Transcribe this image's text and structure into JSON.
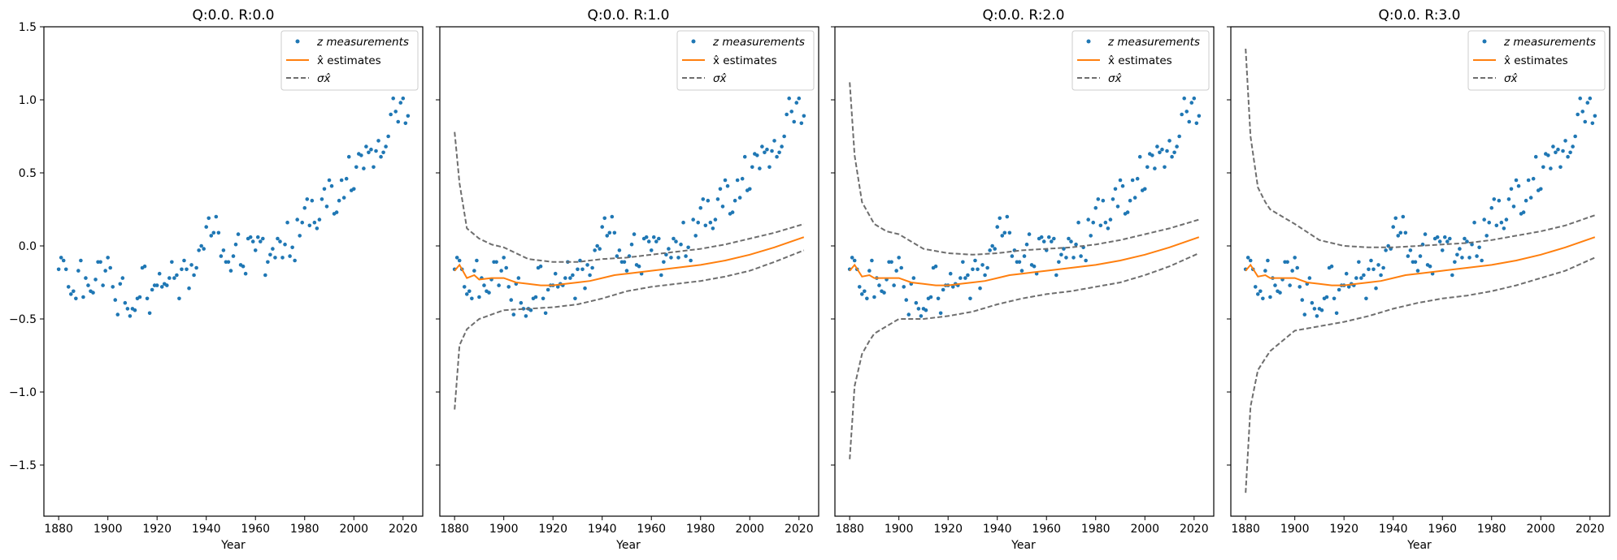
{
  "figure": {
    "xlabel": "Year"
  },
  "legend": {
    "measurements_label": "z measurements",
    "estimates_label": "x̂ estimates",
    "sigma_label": "σx̂"
  },
  "colors": {
    "measurements": "#1f77b4",
    "estimates": "#ff7f0e",
    "sigma": "#6e6e6e",
    "axes": "#000000",
    "background": "#ffffff"
  },
  "chart_data": [
    {
      "type": "line",
      "title": "Q:0.0. R:0.0",
      "xlabel": "Year",
      "ylabel": "",
      "xlim": [
        1874,
        2028
      ],
      "ylim": [
        -1.85,
        1.5
      ],
      "xticks": [
        1880,
        1900,
        1920,
        1940,
        1960,
        1980,
        2000,
        2020
      ],
      "yticks": [
        -1.5,
        -1.0,
        -0.5,
        0.0,
        0.5,
        1.0,
        1.5
      ],
      "show_y_tick_labels": true,
      "legend": "top-right",
      "grid": false,
      "series": [
        {
          "name": "z measurements",
          "kind": "scatter",
          "ref": "measurements"
        }
      ]
    },
    {
      "type": "line",
      "title": "Q:0.0. R:1.0",
      "xlabel": "Year",
      "ylabel": "",
      "xlim": [
        1874,
        2028
      ],
      "ylim": [
        -1.85,
        1.5
      ],
      "xticks": [
        1880,
        1900,
        1920,
        1940,
        1960,
        1980,
        2000,
        2020
      ],
      "yticks": [
        -1.5,
        -1.0,
        -0.5,
        0.0,
        0.5,
        1.0,
        1.5
      ],
      "show_y_tick_labels": false,
      "legend": "top-right",
      "grid": false,
      "series": [
        {
          "name": "z measurements",
          "kind": "scatter",
          "ref": "measurements"
        },
        {
          "name": "x̂ estimates",
          "kind": "line",
          "x": [
            1880,
            1882,
            1885,
            1888,
            1890,
            1895,
            1900,
            1905,
            1910,
            1915,
            1920,
            1925,
            1930,
            1935,
            1940,
            1945,
            1950,
            1960,
            1970,
            1980,
            1990,
            2000,
            2010,
            2022
          ],
          "values": [
            -0.17,
            -0.13,
            -0.22,
            -0.2,
            -0.23,
            -0.22,
            -0.22,
            -0.25,
            -0.26,
            -0.27,
            -0.27,
            -0.26,
            -0.25,
            -0.24,
            -0.22,
            -0.2,
            -0.19,
            -0.17,
            -0.15,
            -0.13,
            -0.1,
            -0.06,
            -0.01,
            0.06
          ]
        },
        {
          "name": "σx̂ upper",
          "kind": "dashed",
          "x": [
            1880,
            1882,
            1885,
            1890,
            1895,
            1900,
            1910,
            1920,
            1930,
            1940,
            1950,
            1960,
            1970,
            1980,
            1990,
            2000,
            2010,
            2022
          ],
          "values": [
            0.78,
            0.43,
            0.12,
            0.05,
            0.01,
            -0.01,
            -0.09,
            -0.11,
            -0.11,
            -0.09,
            -0.08,
            -0.06,
            -0.04,
            -0.02,
            0.01,
            0.05,
            0.09,
            0.15
          ]
        },
        {
          "name": "σx̂ lower",
          "kind": "dashed",
          "x": [
            1880,
            1882,
            1885,
            1890,
            1895,
            1900,
            1910,
            1920,
            1930,
            1940,
            1950,
            1960,
            1970,
            1980,
            1990,
            2000,
            2010,
            2022
          ],
          "values": [
            -1.12,
            -0.68,
            -0.57,
            -0.5,
            -0.47,
            -0.44,
            -0.43,
            -0.42,
            -0.4,
            -0.36,
            -0.31,
            -0.28,
            -0.26,
            -0.24,
            -0.21,
            -0.17,
            -0.11,
            -0.03
          ]
        }
      ]
    },
    {
      "type": "line",
      "title": "Q:0.0. R:2.0",
      "xlabel": "Year",
      "ylabel": "",
      "xlim": [
        1874,
        2028
      ],
      "ylim": [
        -1.85,
        1.5
      ],
      "xticks": [
        1880,
        1900,
        1920,
        1940,
        1960,
        1980,
        2000,
        2020
      ],
      "yticks": [
        -1.5,
        -1.0,
        -0.5,
        0.0,
        0.5,
        1.0,
        1.5
      ],
      "show_y_tick_labels": false,
      "legend": "top-right",
      "grid": false,
      "series": [
        {
          "name": "z measurements",
          "kind": "scatter",
          "ref": "measurements"
        },
        {
          "name": "x̂ estimates",
          "kind": "line",
          "x": [
            1880,
            1882,
            1885,
            1888,
            1890,
            1895,
            1900,
            1905,
            1910,
            1915,
            1920,
            1925,
            1930,
            1935,
            1940,
            1945,
            1950,
            1960,
            1970,
            1980,
            1990,
            2000,
            2010,
            2022
          ],
          "values": [
            -0.17,
            -0.13,
            -0.21,
            -0.2,
            -0.22,
            -0.22,
            -0.22,
            -0.25,
            -0.26,
            -0.27,
            -0.27,
            -0.26,
            -0.25,
            -0.24,
            -0.22,
            -0.2,
            -0.19,
            -0.17,
            -0.15,
            -0.13,
            -0.1,
            -0.06,
            -0.01,
            0.06
          ]
        },
        {
          "name": "σx̂ upper",
          "kind": "dashed",
          "x": [
            1880,
            1882,
            1885,
            1888,
            1890,
            1895,
            1900,
            1910,
            1920,
            1930,
            1940,
            1950,
            1960,
            1970,
            1980,
            1990,
            2000,
            2010,
            2022
          ],
          "values": [
            1.12,
            0.62,
            0.3,
            0.21,
            0.15,
            0.1,
            0.08,
            -0.02,
            -0.05,
            -0.06,
            -0.05,
            -0.03,
            -0.02,
            -0.01,
            0.01,
            0.04,
            0.08,
            0.12,
            0.18
          ]
        },
        {
          "name": "σx̂ lower",
          "kind": "dashed",
          "x": [
            1880,
            1882,
            1885,
            1888,
            1890,
            1895,
            1900,
            1910,
            1920,
            1930,
            1940,
            1950,
            1960,
            1970,
            1980,
            1990,
            2000,
            2010,
            2022
          ],
          "values": [
            -1.46,
            -0.96,
            -0.74,
            -0.65,
            -0.6,
            -0.55,
            -0.5,
            -0.5,
            -0.48,
            -0.45,
            -0.4,
            -0.36,
            -0.33,
            -0.31,
            -0.28,
            -0.25,
            -0.2,
            -0.14,
            -0.05
          ]
        }
      ]
    },
    {
      "type": "line",
      "title": "Q:0.0. R:3.0",
      "xlabel": "Year",
      "ylabel": "",
      "xlim": [
        1874,
        2028
      ],
      "ylim": [
        -1.85,
        1.5
      ],
      "xticks": [
        1880,
        1900,
        1920,
        1940,
        1960,
        1980,
        2000,
        2020
      ],
      "yticks": [
        -1.5,
        -1.0,
        -0.5,
        0.0,
        0.5,
        1.0,
        1.5
      ],
      "show_y_tick_labels": false,
      "legend": "top-right",
      "grid": false,
      "series": [
        {
          "name": "z measurements",
          "kind": "scatter",
          "ref": "measurements"
        },
        {
          "name": "x̂ estimates",
          "kind": "line",
          "x": [
            1880,
            1882,
            1885,
            1888,
            1890,
            1895,
            1900,
            1905,
            1910,
            1915,
            1920,
            1925,
            1930,
            1935,
            1940,
            1945,
            1950,
            1960,
            1970,
            1980,
            1990,
            2000,
            2010,
            2022
          ],
          "values": [
            -0.17,
            -0.13,
            -0.21,
            -0.2,
            -0.22,
            -0.22,
            -0.22,
            -0.25,
            -0.26,
            -0.27,
            -0.27,
            -0.26,
            -0.25,
            -0.24,
            -0.22,
            -0.2,
            -0.19,
            -0.17,
            -0.15,
            -0.13,
            -0.1,
            -0.06,
            -0.01,
            0.06
          ]
        },
        {
          "name": "σx̂ upper",
          "kind": "dashed",
          "x": [
            1880,
            1882,
            1885,
            1888,
            1890,
            1895,
            1900,
            1910,
            1920,
            1930,
            1940,
            1950,
            1960,
            1970,
            1980,
            1990,
            2000,
            2010,
            2022
          ],
          "values": [
            1.35,
            0.75,
            0.4,
            0.3,
            0.25,
            0.2,
            0.15,
            0.04,
            0.0,
            -0.01,
            -0.01,
            0.0,
            0.01,
            0.02,
            0.04,
            0.07,
            0.1,
            0.14,
            0.21
          ]
        },
        {
          "name": "σx̂ lower",
          "kind": "dashed",
          "x": [
            1880,
            1882,
            1885,
            1888,
            1890,
            1895,
            1900,
            1910,
            1920,
            1930,
            1940,
            1950,
            1960,
            1970,
            1980,
            1990,
            2000,
            2010,
            2022
          ],
          "values": [
            -1.69,
            -1.1,
            -0.85,
            -0.77,
            -0.72,
            -0.65,
            -0.58,
            -0.55,
            -0.52,
            -0.48,
            -0.43,
            -0.39,
            -0.36,
            -0.34,
            -0.31,
            -0.27,
            -0.22,
            -0.17,
            -0.08
          ]
        }
      ]
    }
  ],
  "measurements": {
    "x": [
      1880,
      1881,
      1882,
      1883,
      1884,
      1885,
      1886,
      1887,
      1888,
      1889,
      1890,
      1891,
      1892,
      1893,
      1894,
      1895,
      1896,
      1897,
      1898,
      1899,
      1900,
      1901,
      1902,
      1903,
      1904,
      1905,
      1906,
      1907,
      1908,
      1909,
      1910,
      1911,
      1912,
      1913,
      1914,
      1915,
      1916,
      1917,
      1918,
      1919,
      1920,
      1921,
      1922,
      1923,
      1924,
      1925,
      1926,
      1927,
      1928,
      1929,
      1930,
      1931,
      1932,
      1933,
      1934,
      1935,
      1936,
      1937,
      1938,
      1939,
      1940,
      1941,
      1942,
      1943,
      1944,
      1945,
      1946,
      1947,
      1948,
      1949,
      1950,
      1951,
      1952,
      1953,
      1954,
      1955,
      1956,
      1957,
      1958,
      1959,
      1960,
      1961,
      1962,
      1963,
      1964,
      1965,
      1966,
      1967,
      1968,
      1969,
      1970,
      1971,
      1972,
      1973,
      1974,
      1975,
      1976,
      1977,
      1978,
      1979,
      1980,
      1981,
      1982,
      1983,
      1984,
      1985,
      1986,
      1987,
      1988,
      1989,
      1990,
      1991,
      1992,
      1993,
      1994,
      1995,
      1996,
      1997,
      1998,
      1999,
      2000,
      2001,
      2002,
      2003,
      2004,
      2005,
      2006,
      2007,
      2008,
      2009,
      2010,
      2011,
      2012,
      2013,
      2014,
      2015,
      2016,
      2017,
      2018,
      2019,
      2020,
      2021,
      2022
    ],
    "values": [
      -0.16,
      -0.08,
      -0.1,
      -0.16,
      -0.28,
      -0.33,
      -0.31,
      -0.36,
      -0.17,
      -0.1,
      -0.35,
      -0.22,
      -0.27,
      -0.31,
      -0.32,
      -0.23,
      -0.11,
      -0.11,
      -0.27,
      -0.17,
      -0.08,
      -0.15,
      -0.28,
      -0.37,
      -0.47,
      -0.26,
      -0.22,
      -0.39,
      -0.43,
      -0.48,
      -0.43,
      -0.44,
      -0.36,
      -0.35,
      -0.15,
      -0.14,
      -0.36,
      -0.46,
      -0.3,
      -0.27,
      -0.27,
      -0.19,
      -0.28,
      -0.26,
      -0.27,
      -0.22,
      -0.11,
      -0.22,
      -0.2,
      -0.36,
      -0.16,
      -0.1,
      -0.16,
      -0.29,
      -0.13,
      -0.2,
      -0.15,
      -0.03,
      -0.0,
      -0.02,
      0.13,
      0.19,
      0.07,
      0.09,
      0.2,
      0.09,
      -0.07,
      -0.03,
      -0.11,
      -0.11,
      -0.17,
      -0.07,
      0.01,
      0.08,
      -0.13,
      -0.14,
      -0.19,
      0.05,
      0.06,
      0.03,
      -0.03,
      0.06,
      0.03,
      0.05,
      -0.2,
      -0.11,
      -0.06,
      -0.02,
      -0.08,
      0.05,
      0.03,
      -0.08,
      0.01,
      0.16,
      -0.07,
      -0.01,
      -0.1,
      0.18,
      0.07,
      0.16,
      0.26,
      0.32,
      0.14,
      0.31,
      0.16,
      0.12,
      0.18,
      0.32,
      0.39,
      0.27,
      0.45,
      0.41,
      0.22,
      0.23,
      0.31,
      0.45,
      0.33,
      0.46,
      0.61,
      0.38,
      0.39,
      0.54,
      0.63,
      0.62,
      0.53,
      0.68,
      0.64,
      0.66,
      0.54,
      0.65,
      0.72,
      0.61,
      0.64,
      0.68,
      0.75,
      0.9,
      1.01,
      0.92,
      0.85,
      0.98,
      1.01,
      0.84,
      0.89
    ]
  }
}
